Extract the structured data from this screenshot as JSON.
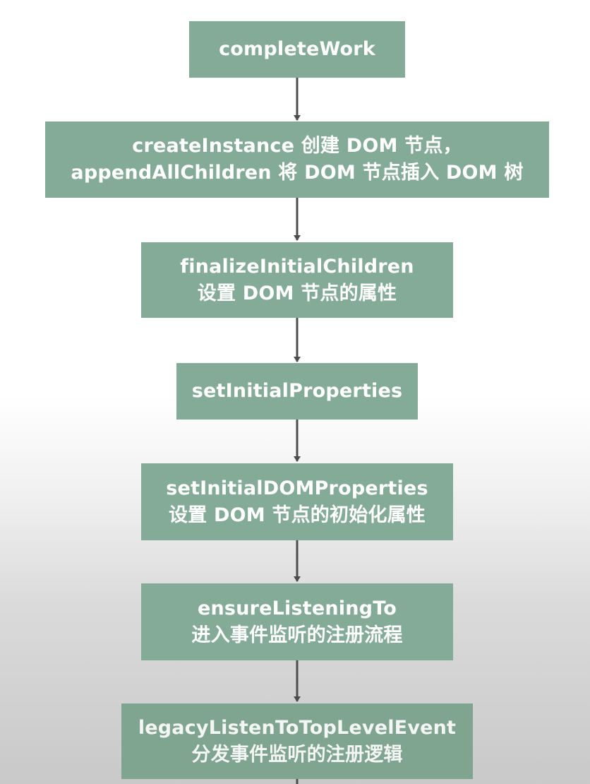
{
  "colors": {
    "box_fill": "#84ab97",
    "box_text": "#ffffff",
    "arrow": "#4d4d4d"
  },
  "steps": [
    {
      "lines": [
        "completeWork"
      ]
    },
    {
      "lines": [
        "createInstance 创建 DOM 节点，",
        "appendAllChildren 将 DOM 节点插入 DOM 树"
      ]
    },
    {
      "lines": [
        "finalizeInitialChildren",
        "设置 DOM 节点的属性"
      ]
    },
    {
      "lines": [
        "setInitialProperties"
      ]
    },
    {
      "lines": [
        "setInitialDOMProperties",
        "设置 DOM 节点的初始化属性"
      ]
    },
    {
      "lines": [
        "ensureListeningTo",
        "进入事件监听的注册流程"
      ]
    },
    {
      "lines": [
        "legacyListenToTopLevelEvent",
        "分发事件监听的注册逻辑"
      ]
    }
  ]
}
